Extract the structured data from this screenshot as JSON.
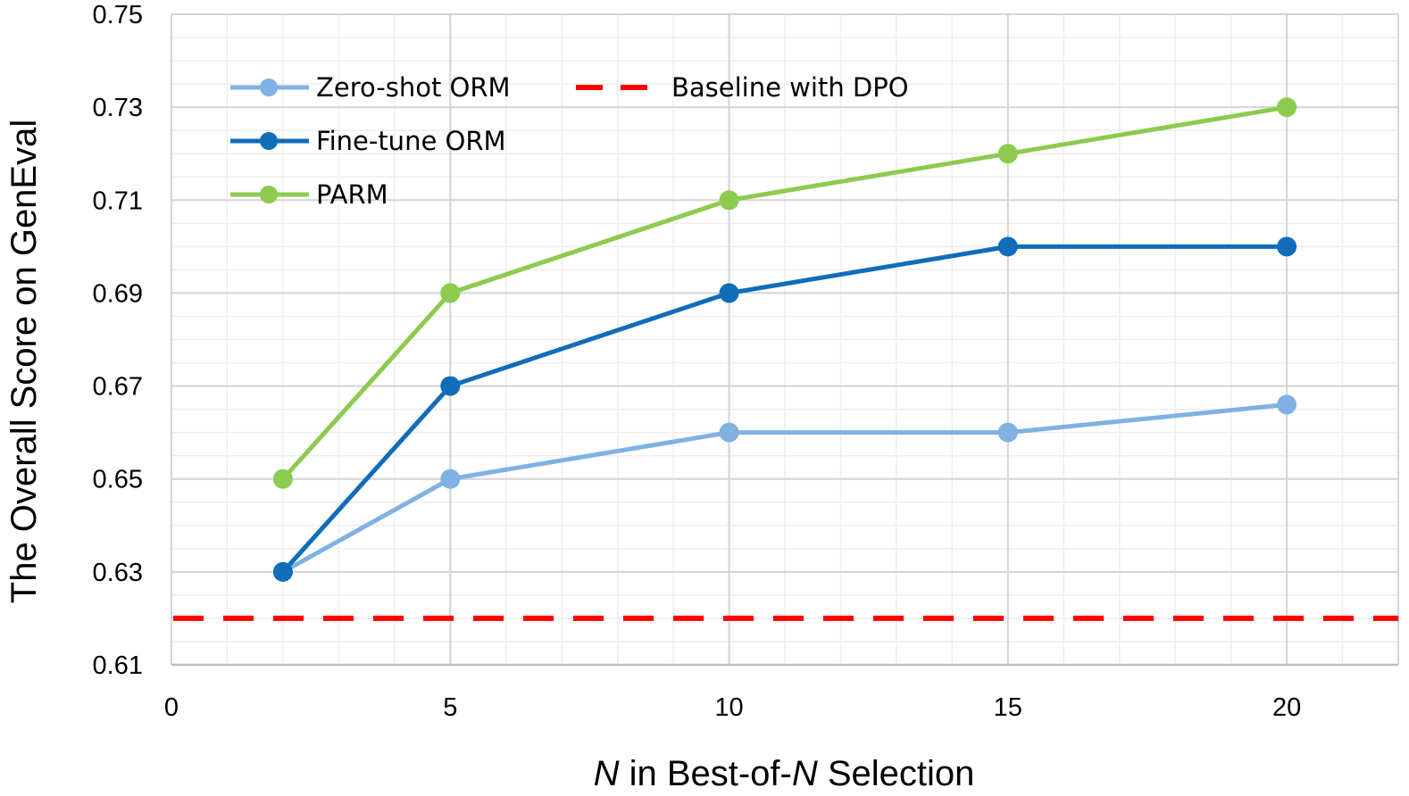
{
  "chart_data": {
    "type": "line",
    "title": "",
    "xlabel": {
      "italic_n": "N",
      "mid": " in Best-of-",
      "italic_n2": "N",
      "tail": " Selection"
    },
    "ylabel": "The Overall Score on GenEval",
    "xlim": [
      0,
      22
    ],
    "ylim": [
      0.61,
      0.75
    ],
    "x_ticks": [
      0,
      5,
      10,
      15,
      20
    ],
    "x_tick_labels": [
      "0",
      "5",
      "10",
      "15",
      "20"
    ],
    "y_ticks": [
      0.61,
      0.63,
      0.65,
      0.67,
      0.69,
      0.71,
      0.73,
      0.75
    ],
    "y_tick_labels": [
      "0.61",
      "0.63",
      "0.65",
      "0.67",
      "0.69",
      "0.71",
      "0.73",
      "0.75"
    ],
    "grid": true,
    "legend_position": "top-left",
    "series": [
      {
        "name": "Zero-shot ORM",
        "color": "#7FB2E3",
        "x": [
          2,
          5,
          10,
          15,
          20
        ],
        "values": [
          0.63,
          0.65,
          0.66,
          0.66,
          0.666
        ]
      },
      {
        "name": "Fine-tune ORM",
        "color": "#0F6DBA",
        "x": [
          2,
          5,
          10,
          15,
          20
        ],
        "values": [
          0.63,
          0.67,
          0.69,
          0.7,
          0.7
        ]
      },
      {
        "name": "PARM",
        "color": "#8CCB4E",
        "x": [
          2,
          5,
          10,
          15,
          20
        ],
        "values": [
          0.65,
          0.69,
          0.71,
          0.72,
          0.73
        ]
      }
    ],
    "baseline": {
      "name": "Baseline with DPO",
      "value": 0.62,
      "color": "#FF0000",
      "style": "dashed"
    }
  }
}
